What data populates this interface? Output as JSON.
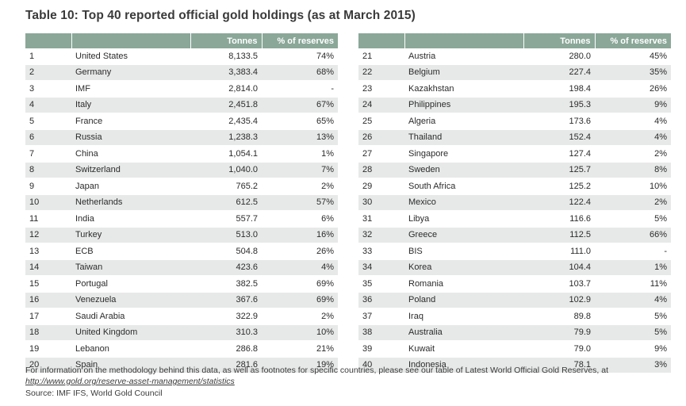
{
  "title": "Table 10: Top 40 reported official gold holdings (as at March 2015)",
  "columns": {
    "rank": "",
    "country": "",
    "tonnes": "Tonnes",
    "pct": "% of reserves"
  },
  "left_rows": [
    {
      "rank": "1",
      "country": "United States",
      "tonnes": "8,133.5",
      "pct": "74%"
    },
    {
      "rank": "2",
      "country": "Germany",
      "tonnes": "3,383.4",
      "pct": "68%"
    },
    {
      "rank": "3",
      "country": "IMF",
      "tonnes": "2,814.0",
      "pct": "-"
    },
    {
      "rank": "4",
      "country": "Italy",
      "tonnes": "2,451.8",
      "pct": "67%"
    },
    {
      "rank": "5",
      "country": "France",
      "tonnes": "2,435.4",
      "pct": "65%"
    },
    {
      "rank": "6",
      "country": "Russia",
      "tonnes": "1,238.3",
      "pct": "13%"
    },
    {
      "rank": "7",
      "country": "China",
      "tonnes": "1,054.1",
      "pct": "1%"
    },
    {
      "rank": "8",
      "country": "Switzerland",
      "tonnes": "1,040.0",
      "pct": "7%"
    },
    {
      "rank": "9",
      "country": "Japan",
      "tonnes": "765.2",
      "pct": "2%"
    },
    {
      "rank": "10",
      "country": "Netherlands",
      "tonnes": "612.5",
      "pct": "57%"
    },
    {
      "rank": "11",
      "country": "India",
      "tonnes": "557.7",
      "pct": "6%"
    },
    {
      "rank": "12",
      "country": "Turkey",
      "tonnes": "513.0",
      "pct": "16%"
    },
    {
      "rank": "13",
      "country": "ECB",
      "tonnes": "504.8",
      "pct": "26%"
    },
    {
      "rank": "14",
      "country": "Taiwan",
      "tonnes": "423.6",
      "pct": "4%"
    },
    {
      "rank": "15",
      "country": "Portugal",
      "tonnes": "382.5",
      "pct": "69%"
    },
    {
      "rank": "16",
      "country": "Venezuela",
      "tonnes": "367.6",
      "pct": "69%"
    },
    {
      "rank": "17",
      "country": "Saudi Arabia",
      "tonnes": "322.9",
      "pct": "2%"
    },
    {
      "rank": "18",
      "country": "United Kingdom",
      "tonnes": "310.3",
      "pct": "10%"
    },
    {
      "rank": "19",
      "country": "Lebanon",
      "tonnes": "286.8",
      "pct": "21%"
    },
    {
      "rank": "20",
      "country": "Spain",
      "tonnes": "281.6",
      "pct": "19%"
    }
  ],
  "right_rows": [
    {
      "rank": "21",
      "country": "Austria",
      "tonnes": "280.0",
      "pct": "45%"
    },
    {
      "rank": "22",
      "country": "Belgium",
      "tonnes": "227.4",
      "pct": "35%"
    },
    {
      "rank": "23",
      "country": "Kazakhstan",
      "tonnes": "198.4",
      "pct": "26%"
    },
    {
      "rank": "24",
      "country": "Philippines",
      "tonnes": "195.3",
      "pct": "9%"
    },
    {
      "rank": "25",
      "country": "Algeria",
      "tonnes": "173.6",
      "pct": "4%"
    },
    {
      "rank": "26",
      "country": "Thailand",
      "tonnes": "152.4",
      "pct": "4%"
    },
    {
      "rank": "27",
      "country": "Singapore",
      "tonnes": "127.4",
      "pct": "2%"
    },
    {
      "rank": "28",
      "country": "Sweden",
      "tonnes": "125.7",
      "pct": "8%"
    },
    {
      "rank": "29",
      "country": "South Africa",
      "tonnes": "125.2",
      "pct": "10%"
    },
    {
      "rank": "30",
      "country": "Mexico",
      "tonnes": "122.4",
      "pct": "2%"
    },
    {
      "rank": "31",
      "country": "Libya",
      "tonnes": "116.6",
      "pct": "5%"
    },
    {
      "rank": "32",
      "country": "Greece",
      "tonnes": "112.5",
      "pct": "66%"
    },
    {
      "rank": "33",
      "country": "BIS",
      "tonnes": "111.0",
      "pct": "-"
    },
    {
      "rank": "34",
      "country": "Korea",
      "tonnes": "104.4",
      "pct": "1%"
    },
    {
      "rank": "35",
      "country": "Romania",
      "tonnes": "103.7",
      "pct": "11%"
    },
    {
      "rank": "36",
      "country": "Poland",
      "tonnes": "102.9",
      "pct": "4%"
    },
    {
      "rank": "37",
      "country": "Iraq",
      "tonnes": "89.8",
      "pct": "5%"
    },
    {
      "rank": "38",
      "country": "Australia",
      "tonnes": "79.9",
      "pct": "5%"
    },
    {
      "rank": "39",
      "country": "Kuwait",
      "tonnes": "79.0",
      "pct": "9%"
    },
    {
      "rank": "40",
      "country": "Indonesia",
      "tonnes": "78.1",
      "pct": "3%"
    }
  ],
  "footnote": {
    "text_before": "For information on the methodology behind this data, as well as footnotes for specific countries, please see our table of Latest World Official Gold Reserves, at ",
    "link_text": "http://www.gold.org/reserve-asset-management/statistics"
  },
  "source": "Source: IMF IFS, World Gold Council",
  "colors": {
    "header_bg": "#8aa798",
    "header_text": "#ffffff",
    "stripe_bg": "#e7e9e8",
    "text": "#2b2b2b"
  }
}
